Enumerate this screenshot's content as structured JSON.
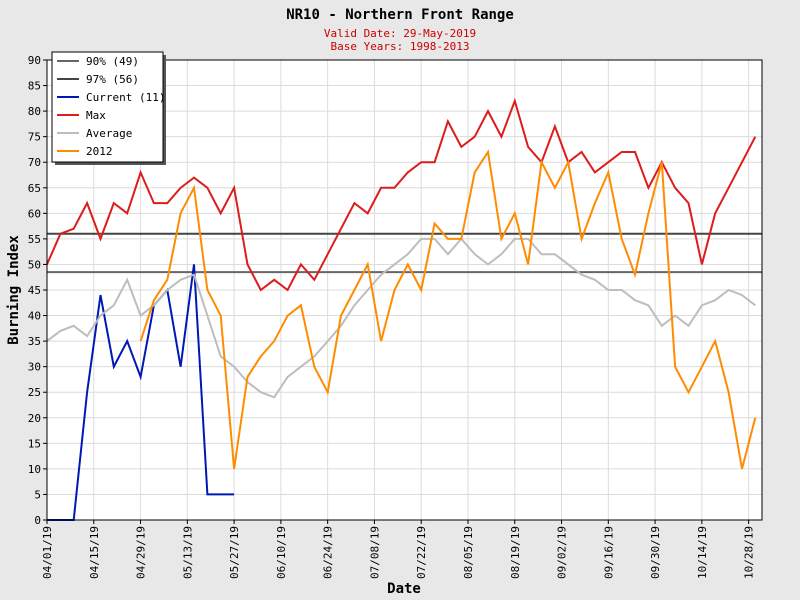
{
  "chart_data": {
    "type": "line",
    "title": "NR10 - Northern Front Range",
    "subtitle": [
      "Valid Date: 29-May-2019",
      "Base Years: 1998-2013"
    ],
    "x_label": "Date",
    "y_label": "Burning Index",
    "x": [
      "04/01/19",
      "04/05/19",
      "04/09/19",
      "04/13/19",
      "04/17/19",
      "04/21/19",
      "04/25/19",
      "04/29/19",
      "05/03/19",
      "05/07/19",
      "05/11/19",
      "05/15/19",
      "05/19/19",
      "05/23/19",
      "05/27/19",
      "05/31/19",
      "06/04/19",
      "06/08/19",
      "06/12/19",
      "06/16/19",
      "06/20/19",
      "06/24/19",
      "06/28/19",
      "07/02/19",
      "07/06/19",
      "07/10/19",
      "07/14/19",
      "07/18/19",
      "07/22/19",
      "07/26/19",
      "07/30/19",
      "08/03/19",
      "08/07/19",
      "08/11/19",
      "08/15/19",
      "08/19/19",
      "08/23/19",
      "08/27/19",
      "08/31/19",
      "09/04/19",
      "09/08/19",
      "09/12/19",
      "09/16/19",
      "09/20/19",
      "09/24/19",
      "09/28/19",
      "10/02/19",
      "10/06/19",
      "10/10/19",
      "10/14/19",
      "10/18/19",
      "10/22/19",
      "10/26/19",
      "10/30/19"
    ],
    "reference_lines": [
      {
        "name": "90% (49)",
        "value": 48.5,
        "color": "#666666"
      },
      {
        "name": "97% (56)",
        "value": 56,
        "color": "#444444"
      }
    ],
    "series": [
      {
        "name": "Current (11)",
        "color": "#0018b4",
        "values": [
          0,
          0,
          0,
          25,
          44,
          30,
          35,
          28,
          42,
          45,
          30,
          50,
          5,
          5,
          5,
          null,
          null,
          null,
          null,
          null,
          null,
          null,
          null,
          null,
          null,
          null,
          null,
          null,
          null,
          null,
          null,
          null,
          null,
          null,
          null,
          null,
          null,
          null,
          null,
          null,
          null,
          null,
          null,
          null,
          null,
          null,
          null,
          null,
          null,
          null,
          null,
          null,
          null,
          null
        ]
      },
      {
        "name": "Max",
        "color": "#dd1c1c",
        "values": [
          50,
          56,
          57,
          62,
          55,
          62,
          60,
          68,
          62,
          62,
          65,
          67,
          65,
          60,
          65,
          50,
          45,
          47,
          45,
          50,
          47,
          52,
          57,
          62,
          60,
          65,
          65,
          68,
          70,
          70,
          78,
          73,
          75,
          80,
          75,
          82,
          73,
          70,
          77,
          70,
          72,
          68,
          70,
          72,
          72,
          65,
          70,
          65,
          62,
          50,
          60,
          65,
          70,
          75
        ]
      },
      {
        "name": "Average",
        "color": "#bdbdbd",
        "values": [
          35,
          37,
          38,
          36,
          40,
          42,
          47,
          40,
          42,
          45,
          47,
          48,
          40,
          32,
          30,
          27,
          25,
          24,
          28,
          30,
          32,
          35,
          38,
          42,
          45,
          48,
          50,
          52,
          55,
          55,
          52,
          55,
          52,
          50,
          52,
          55,
          55,
          52,
          52,
          50,
          48,
          47,
          45,
          45,
          43,
          42,
          38,
          40,
          38,
          42,
          43,
          45,
          44,
          42
        ]
      },
      {
        "name": "2012",
        "color": "#ff8c00",
        "values": [
          null,
          null,
          null,
          null,
          null,
          null,
          null,
          35,
          43,
          47,
          60,
          65,
          45,
          40,
          10,
          28,
          32,
          35,
          40,
          42,
          30,
          25,
          40,
          45,
          50,
          35,
          45,
          50,
          45,
          58,
          55,
          55,
          68,
          72,
          55,
          60,
          50,
          70,
          65,
          70,
          55,
          62,
          68,
          55,
          48,
          60,
          70,
          30,
          25,
          30,
          35,
          25,
          10,
          20
        ]
      }
    ],
    "xlim": [
      "04/01/19",
      "11/01/19"
    ],
    "xticks": [
      "04/01/19",
      "04/15/19",
      "04/29/19",
      "05/13/19",
      "05/27/19",
      "06/10/19",
      "06/24/19",
      "07/08/19",
      "07/22/19",
      "08/05/19",
      "08/19/19",
      "09/02/19",
      "09/16/19",
      "09/30/19",
      "10/14/19",
      "10/28/19"
    ],
    "ylim": [
      0,
      90
    ],
    "yticks": [
      0,
      5,
      10,
      15,
      20,
      25,
      30,
      35,
      40,
      45,
      50,
      55,
      60,
      65,
      70,
      75,
      80,
      85,
      90
    ],
    "grid": true,
    "legend": "upper left"
  }
}
